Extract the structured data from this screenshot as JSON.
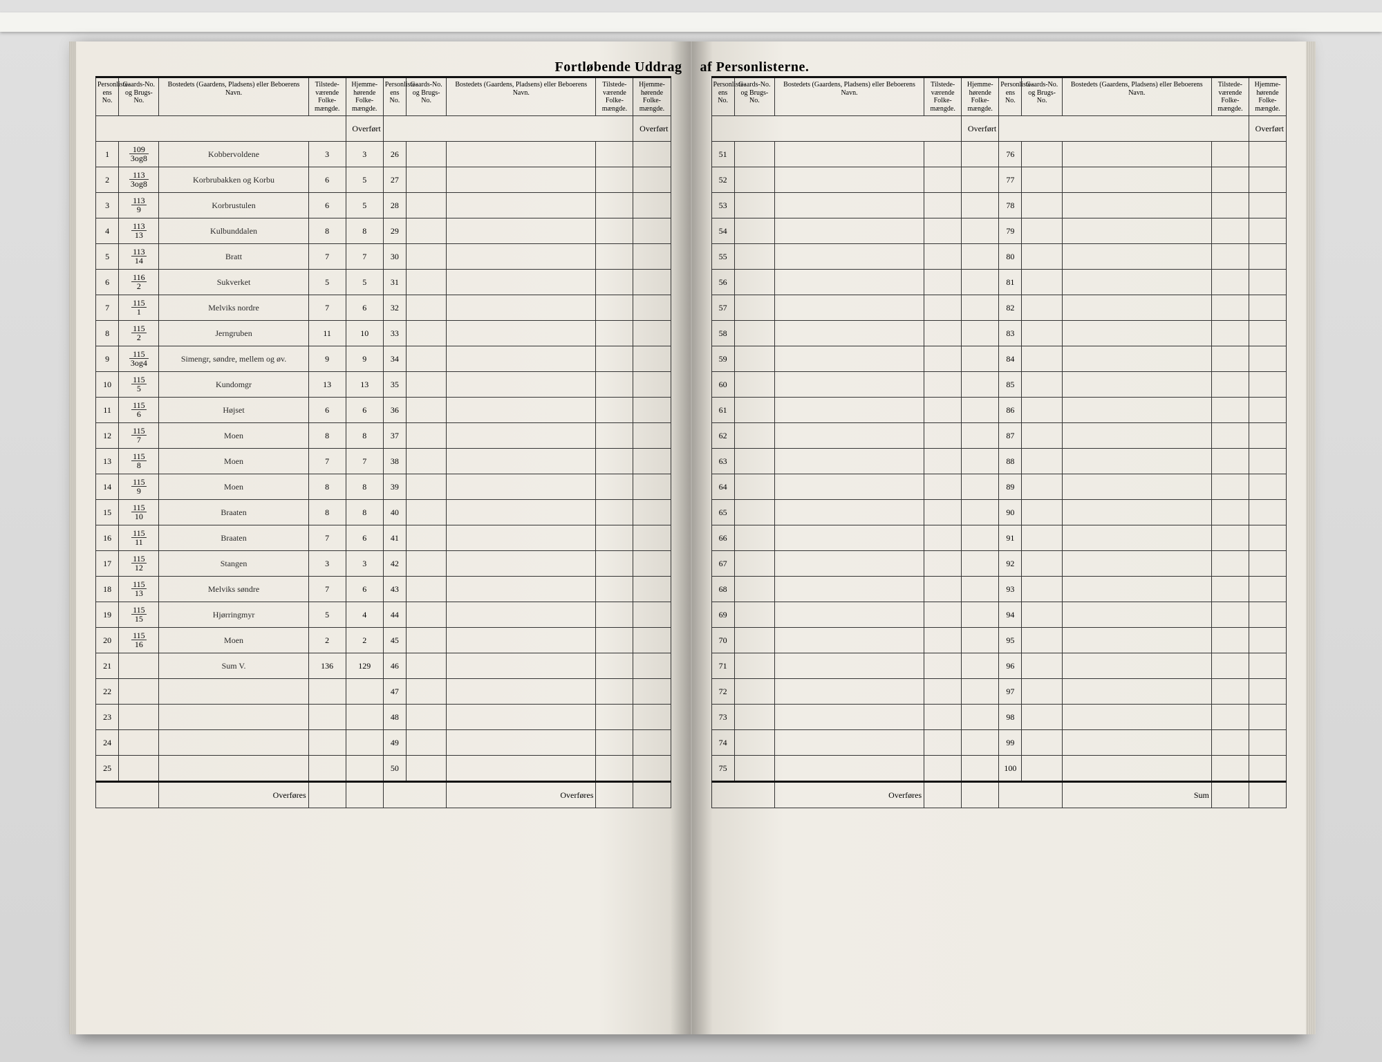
{
  "title_left": "Fortløbende Uddrag",
  "title_right": "af Personlisterne.",
  "headers": {
    "person_no": "Personliste-ens No.",
    "gaard_no": "Gaards-No. og Brugs-No.",
    "name": "Bostedets (Gaardens, Pladsens) eller Beboerens Navn.",
    "pop1": "Tilstede-værende Folke-mængde.",
    "pop2": "Hjemme-hørende Folke-mængde."
  },
  "overfort": "Overført",
  "overfores": "Overføres",
  "sum_label": "Sum",
  "left_block_a": [
    {
      "no": "1",
      "gard_n": "109",
      "gard_d": "3og8",
      "name": "Kobbervoldene",
      "p1": "3",
      "p2": "3"
    },
    {
      "no": "2",
      "gard_n": "113",
      "gard_d": "3og8",
      "name": "Korbrubakken og Korbu",
      "p1": "6",
      "p2": "5"
    },
    {
      "no": "3",
      "gard_n": "113",
      "gard_d": "9",
      "name": "Korbrustulen",
      "p1": "6",
      "p2": "5"
    },
    {
      "no": "4",
      "gard_n": "113",
      "gard_d": "13",
      "name": "Kulbunddalen",
      "p1": "8",
      "p2": "8"
    },
    {
      "no": "5",
      "gard_n": "113",
      "gard_d": "14",
      "name": "Bratt",
      "p1": "7",
      "p2": "7"
    },
    {
      "no": "6",
      "gard_n": "116",
      "gard_d": "2",
      "name": "Sukverket",
      "p1": "5",
      "p2": "5"
    },
    {
      "no": "7",
      "gard_n": "115",
      "gard_d": "1",
      "name": "Melviks nordre",
      "p1": "7",
      "p2": "6"
    },
    {
      "no": "8",
      "gard_n": "115",
      "gard_d": "2",
      "name": "Jerngruben",
      "p1": "11",
      "p2": "10"
    },
    {
      "no": "9",
      "gard_n": "115",
      "gard_d": "3og4",
      "name": "Simengr, søndre, mellem og øv.",
      "p1": "9",
      "p2": "9"
    },
    {
      "no": "10",
      "gard_n": "115",
      "gard_d": "5",
      "name": "Kundomgr",
      "p1": "13",
      "p2": "13"
    },
    {
      "no": "11",
      "gard_n": "115",
      "gard_d": "6",
      "name": "Højset",
      "p1": "6",
      "p2": "6"
    },
    {
      "no": "12",
      "gard_n": "115",
      "gard_d": "7",
      "name": "Moen",
      "p1": "8",
      "p2": "8"
    },
    {
      "no": "13",
      "gard_n": "115",
      "gard_d": "8",
      "name": "Moen",
      "p1": "7",
      "p2": "7"
    },
    {
      "no": "14",
      "gard_n": "115",
      "gard_d": "9",
      "name": "Moen",
      "p1": "8",
      "p2": "8"
    },
    {
      "no": "15",
      "gard_n": "115",
      "gard_d": "10",
      "name": "Braaten",
      "p1": "8",
      "p2": "8"
    },
    {
      "no": "16",
      "gard_n": "115",
      "gard_d": "11",
      "name": "Braaten",
      "p1": "7",
      "p2": "6"
    },
    {
      "no": "17",
      "gard_n": "115",
      "gard_d": "12",
      "name": "Stangen",
      "p1": "3",
      "p2": "3"
    },
    {
      "no": "18",
      "gard_n": "115",
      "gard_d": "13",
      "name": "Melviks søndre",
      "p1": "7",
      "p2": "6"
    },
    {
      "no": "19",
      "gard_n": "115",
      "gard_d": "15",
      "name": "Hjørringmyr",
      "p1": "5",
      "p2": "4"
    },
    {
      "no": "20",
      "gard_n": "115",
      "gard_d": "16",
      "name": "Moen",
      "p1": "2",
      "p2": "2"
    },
    {
      "no": "21",
      "gard_n": "",
      "gard_d": "",
      "name": "Sum V.",
      "p1": "136",
      "p2": "129"
    },
    {
      "no": "22",
      "gard_n": "",
      "gard_d": "",
      "name": "",
      "p1": "",
      "p2": ""
    },
    {
      "no": "23",
      "gard_n": "",
      "gard_d": "",
      "name": "",
      "p1": "",
      "p2": ""
    },
    {
      "no": "24",
      "gard_n": "",
      "gard_d": "",
      "name": "",
      "p1": "",
      "p2": ""
    },
    {
      "no": "25",
      "gard_n": "",
      "gard_d": "",
      "name": "",
      "p1": "",
      "p2": ""
    }
  ],
  "left_block_b_start": 26,
  "right_block_a_start": 51,
  "right_block_b_start": 76,
  "rows_per_block": 25,
  "colors": {
    "paper": "#efece5",
    "ink": "#2a2a2a",
    "rule": "#333333",
    "desk": "#d8d8d8"
  }
}
